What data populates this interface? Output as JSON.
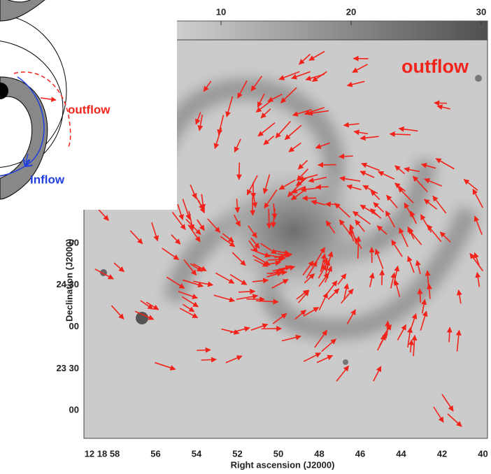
{
  "figure": {
    "colorbar": {
      "ticks": [
        10,
        20,
        30
      ]
    },
    "annotation": "outflow",
    "x_axis": {
      "label": "Right ascension (J2000)",
      "ticks": [
        "12 18 58",
        "56",
        "54",
        "52",
        "50",
        "48",
        "46",
        "44",
        "42",
        "40"
      ]
    },
    "y_axis": {
      "label": "Declination (J2000)",
      "ticks": [
        "00",
        "24 30",
        "00",
        "23 30",
        "00"
      ]
    },
    "inset": {
      "outflow": "outflow",
      "inflow": "Inflow"
    }
  }
}
